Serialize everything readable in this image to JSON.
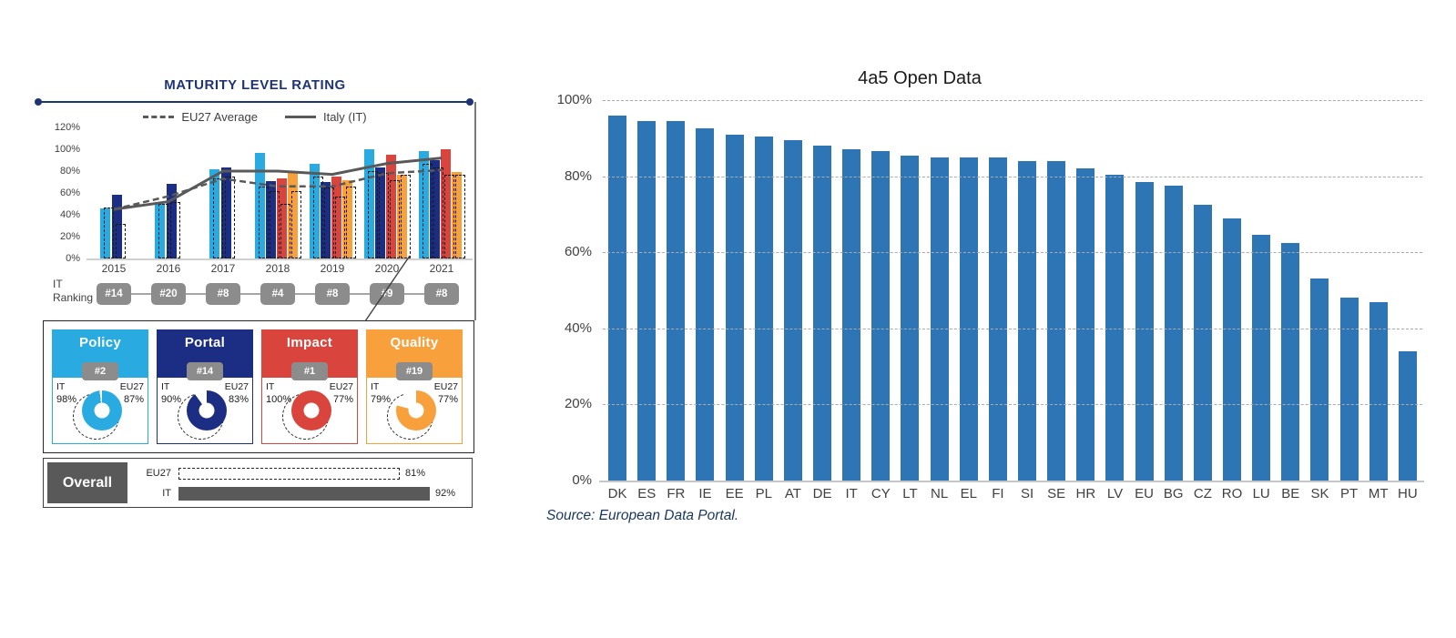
{
  "left_panel": {
    "title": "MATURITY LEVEL RATING",
    "legend": [
      {
        "label": "EU27 Average",
        "style": "dashed"
      },
      {
        "label": "Italy (IT)",
        "style": "solid"
      }
    ],
    "ranking_label_line1": "IT",
    "ranking_label_line2": "Ranking",
    "rankings": [
      {
        "year": "2015",
        "rank": "#14"
      },
      {
        "year": "2016",
        "rank": "#20"
      },
      {
        "year": "2017",
        "rank": "#8"
      },
      {
        "year": "2018",
        "rank": "#4"
      },
      {
        "year": "2019",
        "rank": "#8"
      },
      {
        "year": "2020",
        "rank": "#9"
      },
      {
        "year": "2021",
        "rank": "#8"
      }
    ],
    "cards": [
      {
        "name": "Policy",
        "rank": "#2",
        "color": "#29abe2",
        "it_label": "IT",
        "eu_label": "EU27",
        "it_pct": "98%",
        "eu_pct": "87%",
        "it_value": 98
      },
      {
        "name": "Portal",
        "rank": "#14",
        "color": "#1b2e83",
        "it_label": "IT",
        "eu_label": "EU27",
        "it_pct": "90%",
        "eu_pct": "83%",
        "it_value": 90
      },
      {
        "name": "Impact",
        "rank": "#1",
        "color": "#d9443c",
        "it_label": "IT",
        "eu_label": "EU27",
        "it_pct": "100%",
        "eu_pct": "77%",
        "it_value": 100
      },
      {
        "name": "Quality",
        "rank": "#19",
        "color": "#f7a03c",
        "it_label": "IT",
        "eu_label": "EU27",
        "it_pct": "79%",
        "eu_pct": "77%",
        "it_value": 79
      }
    ],
    "overall": {
      "label": "Overall",
      "rows": [
        {
          "label": "EU27",
          "pct": "81%",
          "value": 81,
          "style": "dashed"
        },
        {
          "label": "IT",
          "pct": "92%",
          "value": 92,
          "style": "solid"
        }
      ]
    }
  },
  "chart_data": [
    {
      "type": "bar",
      "title": "MATURITY LEVEL RATING",
      "categories": [
        "2015",
        "2016",
        "2017",
        "2018",
        "2019",
        "2020",
        "2021"
      ],
      "ylim": [
        0,
        120
      ],
      "yticks": [
        "120%",
        "100%",
        "80%",
        "60%",
        "40%",
        "20%",
        "0%"
      ],
      "series": [
        {
          "name": "Policy (IT)",
          "color": "#29abe2",
          "values": [
            46,
            50,
            82,
            97,
            87,
            100,
            98
          ]
        },
        {
          "name": "Portal (IT)",
          "color": "#1b2e83",
          "values": [
            58,
            68,
            83,
            71,
            70,
            83,
            90
          ]
        },
        {
          "name": "Impact (IT)",
          "color": "#d9443c",
          "values": [
            null,
            null,
            null,
            73,
            75,
            95,
            100
          ]
        },
        {
          "name": "Quality (IT)",
          "color": "#f7a03c",
          "values": [
            null,
            null,
            null,
            78,
            72,
            77,
            79
          ]
        }
      ],
      "eu27_dashed_series": [
        {
          "name": "Policy (EU27)",
          "values": [
            47,
            50,
            73,
            66,
            75,
            80,
            87
          ]
        },
        {
          "name": "Portal (EU27)",
          "values": [
            32,
            52,
            75,
            62,
            65,
            78,
            83
          ]
        },
        {
          "name": "Impact (EU27)",
          "values": [
            null,
            null,
            null,
            50,
            57,
            72,
            77
          ]
        },
        {
          "name": "Quality (EU27)",
          "values": [
            null,
            null,
            null,
            62,
            66,
            77,
            77
          ]
        }
      ],
      "lines": [
        {
          "name": "EU27 Average",
          "style": "dashed",
          "color": "#595959",
          "values": [
            45,
            57,
            73,
            66,
            66,
            78,
            81
          ]
        },
        {
          "name": "Italy (IT)",
          "style": "solid",
          "color": "#595959",
          "values": [
            45,
            52,
            80,
            80,
            77,
            87,
            92
          ]
        }
      ],
      "legend_position": "top",
      "grid": "off"
    },
    {
      "type": "bar",
      "title": "4a5 Open Data",
      "categories": [
        "DK",
        "ES",
        "FR",
        "IE",
        "EE",
        "PL",
        "AT",
        "DE",
        "IT",
        "CY",
        "LT",
        "NL",
        "EL",
        "FI",
        "SI",
        "SE",
        "HR",
        "LV",
        "EU",
        "BG",
        "CZ",
        "RO",
        "LU",
        "BE",
        "SK",
        "PT",
        "MT",
        "HU"
      ],
      "values": [
        96,
        94.5,
        94.5,
        92.5,
        91,
        90.5,
        89.5,
        88,
        87,
        86.5,
        85.5,
        85,
        85,
        85,
        84,
        84,
        82,
        80.5,
        78.5,
        77.5,
        72.5,
        69,
        64.5,
        62.5,
        53,
        48,
        47,
        34
      ],
      "bar_color": "#2e75b6",
      "ylim": [
        0,
        100
      ],
      "yticks": [
        "100%",
        "80%",
        "60%",
        "40%",
        "20%",
        "0%"
      ],
      "grid": "dashed-horizontal",
      "source": "Source: European Data Portal."
    }
  ]
}
